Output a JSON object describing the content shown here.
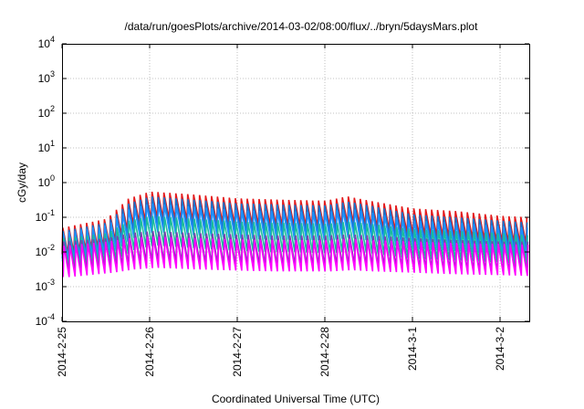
{
  "chart_data": {
    "type": "line",
    "title": "/data/run/goesPlots/archive/2014-03-02/08:00/flux/../bryn/5daysMars.plot",
    "xlabel": "Coordinated Universal Time (UTC)",
    "ylabel": "cGy/day",
    "y_scale": "log",
    "ylim": [
      0.0001,
      10000
    ],
    "y_ticks": [
      {
        "base": "10",
        "exp": "-4"
      },
      {
        "base": "10",
        "exp": "-3"
      },
      {
        "base": "10",
        "exp": "-2"
      },
      {
        "base": "10",
        "exp": "-1"
      },
      {
        "base": "10",
        "exp": "0"
      },
      {
        "base": "10",
        "exp": "1"
      },
      {
        "base": "10",
        "exp": "2"
      },
      {
        "base": "10",
        "exp": "3"
      },
      {
        "base": "10",
        "exp": "4"
      }
    ],
    "x_ticks": [
      "2014-2-25",
      "2014-2-26",
      "2014-2-27",
      "2014-2-28",
      "2014-3-1",
      "2014-3-2"
    ],
    "xlim": [
      "2014-02-25 00:00",
      "2014-03-02 08:00"
    ],
    "grid": true,
    "period_hours": 1.63,
    "cycle_amplitude_decades": 0.9,
    "series": [
      {
        "color": "#e41a1c",
        "x": [
          "2014-02-25 00:00",
          "2014-02-25 12:00",
          "2014-02-25 18:00",
          "2014-02-26 00:00",
          "2014-02-26 12:00",
          "2014-02-27 00:00",
          "2014-02-27 08:00",
          "2014-02-27 12:00",
          "2014-02-28 00:00",
          "2014-02-28 06:00",
          "2014-02-28 12:00",
          "2014-03-01 00:00",
          "2014-03-01 12:00",
          "2014-03-02 00:00",
          "2014-03-02 08:00"
        ],
        "y": [
          0.05,
          0.09,
          0.35,
          0.55,
          0.45,
          0.35,
          0.33,
          0.32,
          0.3,
          0.4,
          0.3,
          0.18,
          0.15,
          0.11,
          0.1
        ]
      },
      {
        "color": "#1874cd",
        "x": [
          "2014-02-25 00:00",
          "2014-02-25 12:00",
          "2014-02-25 18:00",
          "2014-02-26 00:00",
          "2014-02-26 12:00",
          "2014-02-27 00:00",
          "2014-02-27 08:00",
          "2014-02-27 12:00",
          "2014-02-28 00:00",
          "2014-02-28 06:00",
          "2014-02-28 12:00",
          "2014-03-01 00:00",
          "2014-03-01 12:00",
          "2014-03-02 00:00",
          "2014-03-02 08:00"
        ],
        "y": [
          0.04,
          0.07,
          0.25,
          0.4,
          0.32,
          0.25,
          0.24,
          0.23,
          0.22,
          0.28,
          0.22,
          0.12,
          0.1,
          0.08,
          0.07
        ]
      },
      {
        "color": "#1e90ff",
        "x": [
          "2014-02-25 00:00",
          "2014-02-25 12:00",
          "2014-02-25 18:00",
          "2014-02-26 00:00",
          "2014-02-26 12:00",
          "2014-02-27 00:00",
          "2014-02-27 08:00",
          "2014-02-27 12:00",
          "2014-02-28 00:00",
          "2014-02-28 06:00",
          "2014-02-28 12:00",
          "2014-03-01 00:00",
          "2014-03-01 12:00",
          "2014-03-02 00:00",
          "2014-03-02 08:00"
        ],
        "y": [
          0.035,
          0.06,
          0.17,
          0.25,
          0.2,
          0.16,
          0.15,
          0.15,
          0.14,
          0.18,
          0.14,
          0.08,
          0.07,
          0.055,
          0.05
        ]
      },
      {
        "color": "#1abc9c",
        "x": [
          "2014-02-25 00:00",
          "2014-02-25 12:00",
          "2014-02-25 18:00",
          "2014-02-26 00:00",
          "2014-02-26 12:00",
          "2014-02-27 00:00",
          "2014-02-27 08:00",
          "2014-02-27 12:00",
          "2014-02-28 00:00",
          "2014-02-28 06:00",
          "2014-02-28 12:00",
          "2014-03-01 00:00",
          "2014-03-01 12:00",
          "2014-03-02 00:00",
          "2014-03-02 08:00"
        ],
        "y": [
          0.025,
          0.035,
          0.08,
          0.11,
          0.09,
          0.075,
          0.07,
          0.07,
          0.065,
          0.075,
          0.065,
          0.045,
          0.04,
          0.035,
          0.03
        ]
      },
      {
        "color": "#7b3fb0",
        "x": [
          "2014-02-25 00:00",
          "2014-02-25 12:00",
          "2014-02-25 18:00",
          "2014-02-26 00:00",
          "2014-02-26 12:00",
          "2014-02-27 00:00",
          "2014-02-27 08:00",
          "2014-02-27 12:00",
          "2014-02-28 00:00",
          "2014-02-28 06:00",
          "2014-02-28 12:00",
          "2014-03-01 00:00",
          "2014-03-01 12:00",
          "2014-03-02 00:00",
          "2014-03-02 08:00"
        ],
        "y": [
          0.02,
          0.025,
          0.035,
          0.04,
          0.035,
          0.032,
          0.03,
          0.03,
          0.03,
          0.032,
          0.03,
          0.025,
          0.022,
          0.02,
          0.02
        ]
      },
      {
        "color": "#ff00ff",
        "x": [
          "2014-02-25 00:00",
          "2014-02-25 12:00",
          "2014-02-25 18:00",
          "2014-02-26 00:00",
          "2014-02-26 12:00",
          "2014-02-27 00:00",
          "2014-02-27 08:00",
          "2014-02-27 12:00",
          "2014-02-28 00:00",
          "2014-02-28 06:00",
          "2014-02-28 12:00",
          "2014-03-01 00:00",
          "2014-03-01 12:00",
          "2014-03-02 00:00",
          "2014-03-02 08:00"
        ],
        "y": [
          0.015,
          0.02,
          0.025,
          0.028,
          0.025,
          0.023,
          0.022,
          0.022,
          0.022,
          0.024,
          0.022,
          0.02,
          0.018,
          0.017,
          0.016
        ]
      }
    ]
  }
}
